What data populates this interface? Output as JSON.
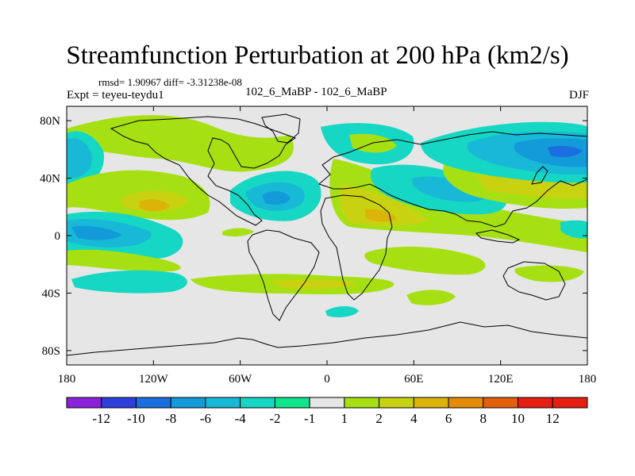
{
  "title": "Streamfunction Perturbation at 200 hPa (km2/s)",
  "stats": {
    "rmsd_text": "rmsd= 1.90967 diff= -3.31238e-08"
  },
  "experiment": {
    "text": "Expt = teyeu-teydu1"
  },
  "case_label": "102_6_MaBP - 102_6_MaBP",
  "season": "DJF",
  "chart_data": {
    "type": "heatmap",
    "title": "Streamfunction Perturbation at 200 hPa (km2/s)",
    "variable": "Streamfunction Perturbation",
    "units": "km2/s",
    "level": "200 hPa",
    "x_axis": {
      "range": [
        -180,
        180
      ],
      "ticks": [
        {
          "value": -180,
          "label": "180"
        },
        {
          "value": -120,
          "label": "120W"
        },
        {
          "value": -60,
          "label": "60W"
        },
        {
          "value": 0,
          "label": "0"
        },
        {
          "value": 60,
          "label": "60E"
        },
        {
          "value": 120,
          "label": "120E"
        },
        {
          "value": 180,
          "label": "180"
        }
      ]
    },
    "y_axis": {
      "range": [
        -90,
        90
      ],
      "ticks": [
        {
          "value": 80,
          "label": "80N"
        },
        {
          "value": 40,
          "label": "40N"
        },
        {
          "value": 0,
          "label": "0"
        },
        {
          "value": -40,
          "label": "40S"
        },
        {
          "value": -80,
          "label": "80S"
        }
      ]
    },
    "colorbar": {
      "labels": [
        "-12",
        "-10",
        "-8",
        "-6",
        "-4",
        "-2",
        "-1",
        "1",
        "2",
        "4",
        "6",
        "8",
        "10",
        "12"
      ],
      "colors": [
        "#8a22dc",
        "#2e3fdc",
        "#1a6ee0",
        "#139ad8",
        "#18b9d6",
        "#16d7c4",
        "#10e58c",
        "#e6e6e6",
        "#a6e013",
        "#c8d210",
        "#dcb308",
        "#e48b08",
        "#e45f0a",
        "#e41e12",
        "#e41e12"
      ]
    },
    "features": [
      {
        "lon": -170,
        "lat": 55,
        "value": -6
      },
      {
        "lon": -148,
        "lat": 50,
        "value": -2
      },
      {
        "lon": -120,
        "lat": 75,
        "value": 2
      },
      {
        "lon": -130,
        "lat": 17,
        "value": 6
      },
      {
        "lon": -150,
        "lat": 25,
        "value": 2
      },
      {
        "lon": -90,
        "lat": 57,
        "value": 2
      },
      {
        "lon": -35,
        "lat": 23,
        "value": -4
      },
      {
        "lon": -160,
        "lat": 0,
        "value": -8
      },
      {
        "lon": -125,
        "lat": -20,
        "value": 2
      },
      {
        "lon": -120,
        "lat": -35,
        "value": -2
      },
      {
        "lon": -42,
        "lat": -30,
        "value": 2
      },
      {
        "lon": 45,
        "lat": 12,
        "value": 6
      },
      {
        "lon": 15,
        "lat": 58,
        "value": -2
      },
      {
        "lon": 65,
        "lat": 45,
        "value": 2
      },
      {
        "lon": 80,
        "lat": 28,
        "value": -2
      },
      {
        "lon": 125,
        "lat": 35,
        "value": 4
      },
      {
        "lon": 145,
        "lat": 55,
        "value": -8
      },
      {
        "lon": 110,
        "lat": 18,
        "value": -4
      },
      {
        "lon": 20,
        "lat": -52,
        "value": -2
      },
      {
        "lon": 160,
        "lat": -15,
        "value": 2
      },
      {
        "lon": 60,
        "lat": -30,
        "value": 2
      }
    ]
  }
}
